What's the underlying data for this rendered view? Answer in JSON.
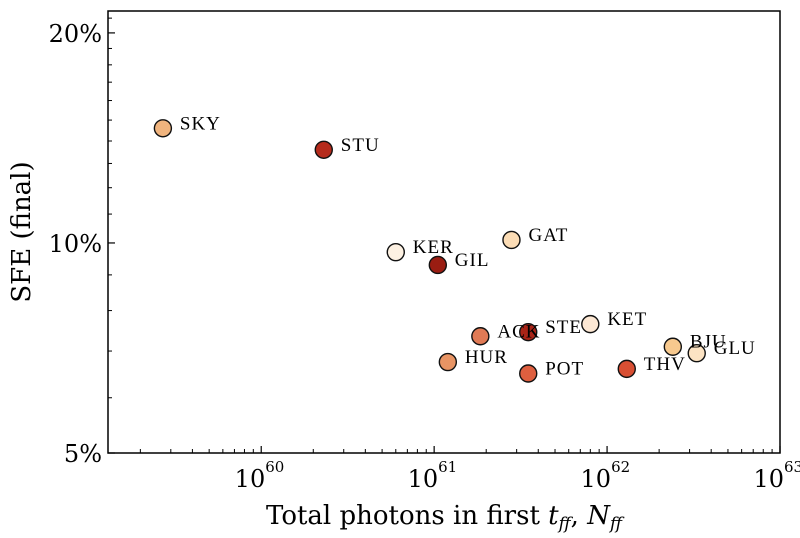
{
  "chart_data": {
    "type": "scatter",
    "xlabel": "Total photons in first t_ff, N_ff",
    "ylabel": "SFE (final)",
    "xscale": "log",
    "yscale": "log",
    "xlim": [
      1.3e+59,
      1e+63
    ],
    "ylim": [
      5,
      21.5
    ],
    "grid": false,
    "x_ticks": [
      {
        "value": 1e+60,
        "base": "10",
        "exp": "60"
      },
      {
        "value": 1e+61,
        "base": "10",
        "exp": "61"
      },
      {
        "value": 1e+62,
        "base": "10",
        "exp": "62"
      },
      {
        "value": 1e+63,
        "base": "10",
        "exp": "63"
      }
    ],
    "y_ticks": [
      {
        "value": 5,
        "label": "5%"
      },
      {
        "value": 10,
        "label": "10%"
      },
      {
        "value": 20,
        "label": "20%"
      }
    ],
    "points": [
      {
        "name": "SKY",
        "x": 2.7e+59,
        "y": 14.6,
        "color": "#f0b47e"
      },
      {
        "name": "STU",
        "x": 2.3e+60,
        "y": 13.6,
        "color": "#b52b1c"
      },
      {
        "name": "KER",
        "x": 6e+60,
        "y": 9.7,
        "color": "#fdf1e2"
      },
      {
        "name": "GAT",
        "x": 2.8e+61,
        "y": 10.1,
        "color": "#fbdcb5"
      },
      {
        "name": "GIL",
        "x": 1.05e+61,
        "y": 9.3,
        "color": "#9a1d12"
      },
      {
        "name": "KET",
        "x": 8e+61,
        "y": 7.65,
        "color": "#fde8d4"
      },
      {
        "name": "STE",
        "x": 3.5e+61,
        "y": 7.45,
        "color": "#a92417"
      },
      {
        "name": "ACK",
        "x": 1.85e+61,
        "y": 7.35,
        "color": "#e07a55"
      },
      {
        "name": "BJU",
        "x": 2.4e+62,
        "y": 7.1,
        "color": "#f7c98e"
      },
      {
        "name": "GLU",
        "x": 3.3e+62,
        "y": 6.95,
        "color": "#fce3c3"
      },
      {
        "name": "HUR",
        "x": 1.2e+61,
        "y": 6.75,
        "color": "#e89464"
      },
      {
        "name": "THV",
        "x": 1.3e+62,
        "y": 6.6,
        "color": "#d84f33"
      },
      {
        "name": "POT",
        "x": 3.5e+61,
        "y": 6.5,
        "color": "#de5f3f"
      }
    ]
  }
}
